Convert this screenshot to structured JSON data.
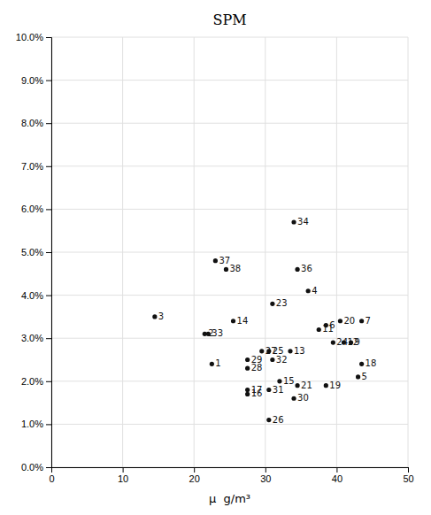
{
  "chart_data": {
    "type": "scatter",
    "title": "SPM",
    "xlabel": "μ  g/m³",
    "labels": [
      "1",
      "2",
      "3",
      "4",
      "5",
      "6",
      "7",
      "9",
      "11",
      "12",
      "13",
      "14",
      "15",
      "16",
      "17",
      "18",
      "19",
      "20",
      "21",
      "23",
      "24",
      "25",
      "26",
      "27",
      "28",
      "29",
      "30",
      "31",
      "32",
      "33",
      "34",
      "36",
      "37",
      "38"
    ],
    "x": [
      22.5,
      21.5,
      14.5,
      36.0,
      43.0,
      38.5,
      43.5,
      42.0,
      37.5,
      41.0,
      33.5,
      25.5,
      32.0,
      27.5,
      27.5,
      43.5,
      38.5,
      40.5,
      34.5,
      31.0,
      39.5,
      30.5,
      30.5,
      29.5,
      27.5,
      27.5,
      34.0,
      30.5,
      31.0,
      22.0,
      34.0,
      34.5,
      23.0,
      24.5
    ],
    "values": [
      0.024,
      0.031,
      0.035,
      0.041,
      0.021,
      0.033,
      0.034,
      0.029,
      0.032,
      0.029,
      0.027,
      0.034,
      0.02,
      0.017,
      0.018,
      0.024,
      0.019,
      0.034,
      0.019,
      0.038,
      0.029,
      0.027,
      0.011,
      0.027,
      0.023,
      0.025,
      0.016,
      0.018,
      0.025,
      0.031,
      0.057,
      0.046,
      0.048,
      0.046
    ],
    "color": "#111111",
    "xlim": [
      0,
      50
    ],
    "xticks": [
      0,
      10,
      20,
      30,
      40,
      50
    ],
    "ylim": [
      0.0,
      0.1
    ],
    "yticks": [
      {
        "value": 0.0,
        "label": "0.0%"
      },
      {
        "value": 0.01,
        "label": "1.0%"
      },
      {
        "value": 0.02,
        "label": "2.0%"
      },
      {
        "value": 0.03,
        "label": "3.0%"
      },
      {
        "value": 0.04,
        "label": "4.0%"
      },
      {
        "value": 0.05,
        "label": "5.0%"
      },
      {
        "value": 0.06,
        "label": "6.0%"
      },
      {
        "value": 0.07,
        "label": "7.0%"
      },
      {
        "value": 0.08,
        "label": "8.0%"
      },
      {
        "value": 0.09,
        "label": "9.0%"
      },
      {
        "value": 0.1,
        "label": "10.0%"
      }
    ],
    "grid": true
  }
}
